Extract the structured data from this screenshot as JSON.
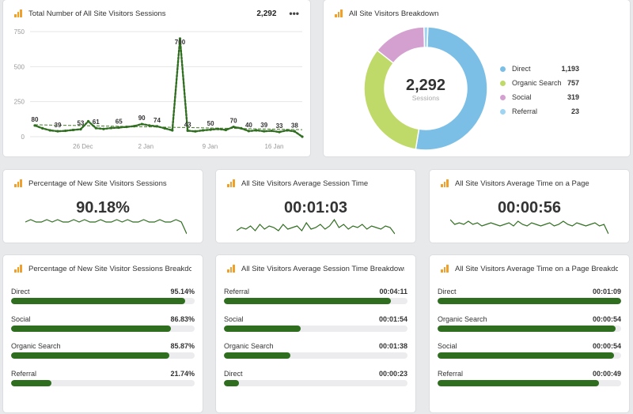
{
  "sessions": {
    "title": "Total Number of All Site Visitors Sessions",
    "total": "2,292",
    "y_ticks": [
      "750",
      "500",
      "250",
      "0"
    ],
    "x_ticks": [
      "26 Dec",
      "2 Jan",
      "9 Jan",
      "16 Jan"
    ],
    "chart_data": {
      "type": "line",
      "title": "Total Number of All Site Visitors Sessions",
      "ylim": [
        0,
        750
      ],
      "values": [
        80,
        60,
        45,
        39,
        42,
        48,
        53,
        110,
        61,
        55,
        62,
        65,
        70,
        75,
        90,
        80,
        74,
        60,
        45,
        700,
        43,
        38,
        45,
        50,
        55,
        48,
        70,
        60,
        40,
        45,
        39,
        42,
        33,
        45,
        38,
        0
      ],
      "labeled_points": [
        {
          "index": 0,
          "label": "80"
        },
        {
          "index": 3,
          "label": "39"
        },
        {
          "index": 6,
          "label": "53"
        },
        {
          "index": 8,
          "label": "61"
        },
        {
          "index": 11,
          "label": "65"
        },
        {
          "index": 14,
          "label": "90"
        },
        {
          "index": 16,
          "label": "74"
        },
        {
          "index": 19,
          "label": "700"
        },
        {
          "index": 20,
          "label": "43"
        },
        {
          "index": 23,
          "label": "50"
        },
        {
          "index": 26,
          "label": "70"
        },
        {
          "index": 28,
          "label": "40"
        },
        {
          "index": 30,
          "label": "39"
        },
        {
          "index": 32,
          "label": "33"
        },
        {
          "index": 34,
          "label": "38"
        }
      ],
      "trend": [
        85,
        50
      ],
      "colors": {
        "line": "#2f6e1f",
        "trend": "#4a7a2e",
        "grid": "#e6e6e6"
      }
    }
  },
  "breakdown": {
    "title": "All Site Visitors Breakdown",
    "center_value": "2,292",
    "center_label": "Sessions",
    "chart_data": {
      "type": "pie",
      "title": "All Site Visitors Breakdown",
      "total": 2292,
      "slices": [
        {
          "label": "Direct",
          "value": 1193,
          "display": "1,193",
          "color": "#7cbfe6"
        },
        {
          "label": "Organic Search",
          "value": 757,
          "display": "757",
          "color": "#c0da6a"
        },
        {
          "label": "Social",
          "value": 319,
          "display": "319",
          "color": "#d4a0d0"
        },
        {
          "label": "Referral",
          "value": 23,
          "display": "23",
          "color": "#9fd4f2"
        }
      ]
    }
  },
  "kpis": [
    {
      "title": "Percentage of New Site Visitors Sessions",
      "value": "90.18%",
      "spark": [
        5,
        6,
        5,
        5,
        6,
        5,
        6,
        5,
        5,
        6,
        5,
        6,
        5,
        5,
        6,
        5,
        5,
        6,
        5,
        6,
        5,
        5,
        6,
        5,
        5,
        6,
        5,
        5,
        6,
        5,
        0
      ]
    },
    {
      "title": "All Site Visitors Average Session Time",
      "value": "00:01:03",
      "spark": [
        2,
        4,
        3,
        5,
        2,
        6,
        3,
        5,
        4,
        2,
        6,
        3,
        4,
        5,
        2,
        7,
        3,
        4,
        6,
        3,
        5,
        9,
        4,
        6,
        3,
        5,
        4,
        6,
        3,
        5,
        4,
        3,
        5,
        4,
        0
      ]
    },
    {
      "title": "All Site Visitors Average Time on a Page",
      "value": "00:00:56",
      "spark": [
        9,
        6,
        7,
        6,
        8,
        6,
        7,
        5,
        6,
        7,
        6,
        5,
        6,
        7,
        5,
        8,
        6,
        5,
        7,
        6,
        5,
        6,
        7,
        5,
        6,
        8,
        6,
        5,
        7,
        6,
        5,
        6,
        7,
        5,
        6,
        0
      ]
    }
  ],
  "bd_percent": {
    "title": "Percentage of New Site Visitor Sessions Breakdown",
    "rows": [
      {
        "label": "Direct",
        "value": "95.14%",
        "fill": 0.95
      },
      {
        "label": "Social",
        "value": "86.83%",
        "fill": 0.87
      },
      {
        "label": "Organic Search",
        "value": "85.87%",
        "fill": 0.86
      },
      {
        "label": "Referral",
        "value": "21.74%",
        "fill": 0.22
      }
    ]
  },
  "bd_session": {
    "title": "All Site Visitors Average Session Time Breakdown",
    "rows": [
      {
        "label": "Referral",
        "value": "00:04:11",
        "fill": 0.91
      },
      {
        "label": "Social",
        "value": "00:01:54",
        "fill": 0.42
      },
      {
        "label": "Organic Search",
        "value": "00:01:38",
        "fill": 0.36
      },
      {
        "label": "Direct",
        "value": "00:00:23",
        "fill": 0.08
      }
    ]
  },
  "bd_page": {
    "title": "All Site Visitors Average Time on a Page Breakdown",
    "rows": [
      {
        "label": "Direct",
        "value": "00:01:09",
        "fill": 1.0
      },
      {
        "label": "Organic Search",
        "value": "00:00:54",
        "fill": 0.97
      },
      {
        "label": "Social",
        "value": "00:00:54",
        "fill": 0.96
      },
      {
        "label": "Referral",
        "value": "00:00:49",
        "fill": 0.88
      }
    ]
  }
}
